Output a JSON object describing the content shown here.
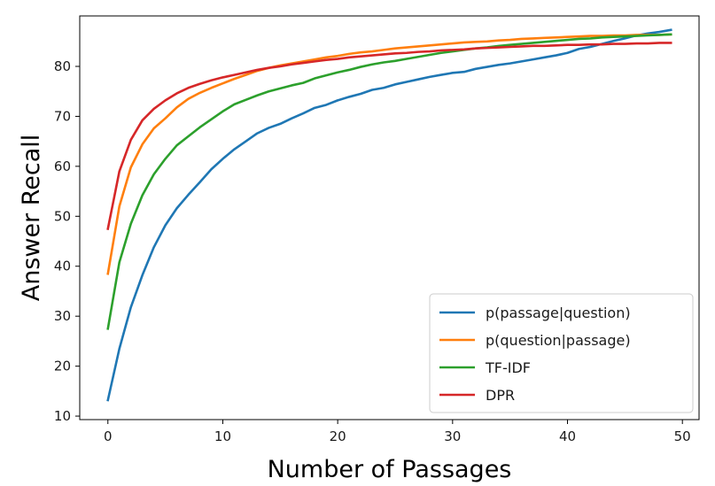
{
  "chart_data": {
    "type": "line",
    "title": "",
    "xlabel": "Number of Passages",
    "ylabel": "Answer Recall",
    "xlim": [
      -2.45,
      51.45
    ],
    "ylim": [
      9.3,
      90.1
    ],
    "xticks": [
      0,
      10,
      20,
      30,
      40,
      50
    ],
    "yticks": [
      10,
      20,
      30,
      40,
      50,
      60,
      70,
      80
    ],
    "grid": false,
    "legend_position": "lower-right",
    "x": [
      0,
      1,
      2,
      3,
      4,
      5,
      6,
      7,
      8,
      9,
      10,
      11,
      12,
      13,
      14,
      15,
      16,
      17,
      18,
      19,
      20,
      21,
      22,
      23,
      24,
      25,
      26,
      27,
      28,
      29,
      30,
      31,
      32,
      33,
      34,
      35,
      36,
      37,
      38,
      39,
      40,
      41,
      42,
      43,
      44,
      45,
      46,
      47,
      48,
      49
    ],
    "series": [
      {
        "name": "p(passage|question)",
        "color": "#1f77b4",
        "values": [
          13.2,
          23.5,
          31.8,
          38.2,
          43.8,
          48.2,
          51.6,
          54.3,
          56.8,
          59.4,
          61.5,
          63.4,
          65.0,
          66.6,
          67.7,
          68.5,
          69.6,
          70.6,
          71.7,
          72.3,
          73.2,
          73.9,
          74.5,
          75.3,
          75.7,
          76.4,
          76.9,
          77.4,
          77.9,
          78.3,
          78.7,
          78.9,
          79.5,
          79.9,
          80.3,
          80.6,
          81.0,
          81.4,
          81.8,
          82.2,
          82.7,
          83.5,
          83.9,
          84.5,
          85.1,
          85.6,
          86.2,
          86.6,
          86.9,
          87.3
        ]
      },
      {
        "name": "p(question|passage)",
        "color": "#ff7f0e",
        "values": [
          38.5,
          52.0,
          59.8,
          64.4,
          67.6,
          69.6,
          71.8,
          73.5,
          74.7,
          75.7,
          76.6,
          77.5,
          78.3,
          79.1,
          79.7,
          80.2,
          80.6,
          81.0,
          81.4,
          81.8,
          82.1,
          82.5,
          82.8,
          83.0,
          83.3,
          83.6,
          83.8,
          84.0,
          84.2,
          84.4,
          84.6,
          84.8,
          84.9,
          85.0,
          85.2,
          85.3,
          85.5,
          85.6,
          85.7,
          85.8,
          85.9,
          86.0,
          86.1,
          86.1,
          86.2,
          86.2,
          86.3,
          86.3,
          86.3,
          86.4
        ]
      },
      {
        "name": "TF-IDF",
        "color": "#2ca02c",
        "values": [
          27.5,
          40.8,
          48.5,
          54.2,
          58.4,
          61.5,
          64.2,
          66.0,
          67.8,
          69.4,
          71.0,
          72.4,
          73.3,
          74.2,
          75.0,
          75.6,
          76.2,
          76.7,
          77.6,
          78.2,
          78.8,
          79.3,
          79.9,
          80.4,
          80.8,
          81.1,
          81.5,
          81.9,
          82.3,
          82.7,
          83.0,
          83.3,
          83.6,
          83.8,
          84.1,
          84.3,
          84.5,
          84.7,
          84.9,
          85.1,
          85.3,
          85.5,
          85.6,
          85.8,
          85.9,
          86.0,
          86.1,
          86.2,
          86.3,
          86.4
        ]
      },
      {
        "name": "DPR",
        "color": "#d62728",
        "values": [
          47.5,
          59.0,
          65.3,
          69.2,
          71.5,
          73.2,
          74.6,
          75.7,
          76.5,
          77.2,
          77.8,
          78.3,
          78.8,
          79.3,
          79.7,
          80.0,
          80.4,
          80.7,
          81.0,
          81.3,
          81.5,
          81.8,
          82.0,
          82.2,
          82.4,
          82.6,
          82.7,
          82.9,
          83.0,
          83.2,
          83.3,
          83.4,
          83.6,
          83.7,
          83.8,
          83.9,
          84.0,
          84.1,
          84.1,
          84.2,
          84.3,
          84.3,
          84.4,
          84.4,
          84.5,
          84.5,
          84.6,
          84.6,
          84.7,
          84.7
        ]
      }
    ]
  }
}
